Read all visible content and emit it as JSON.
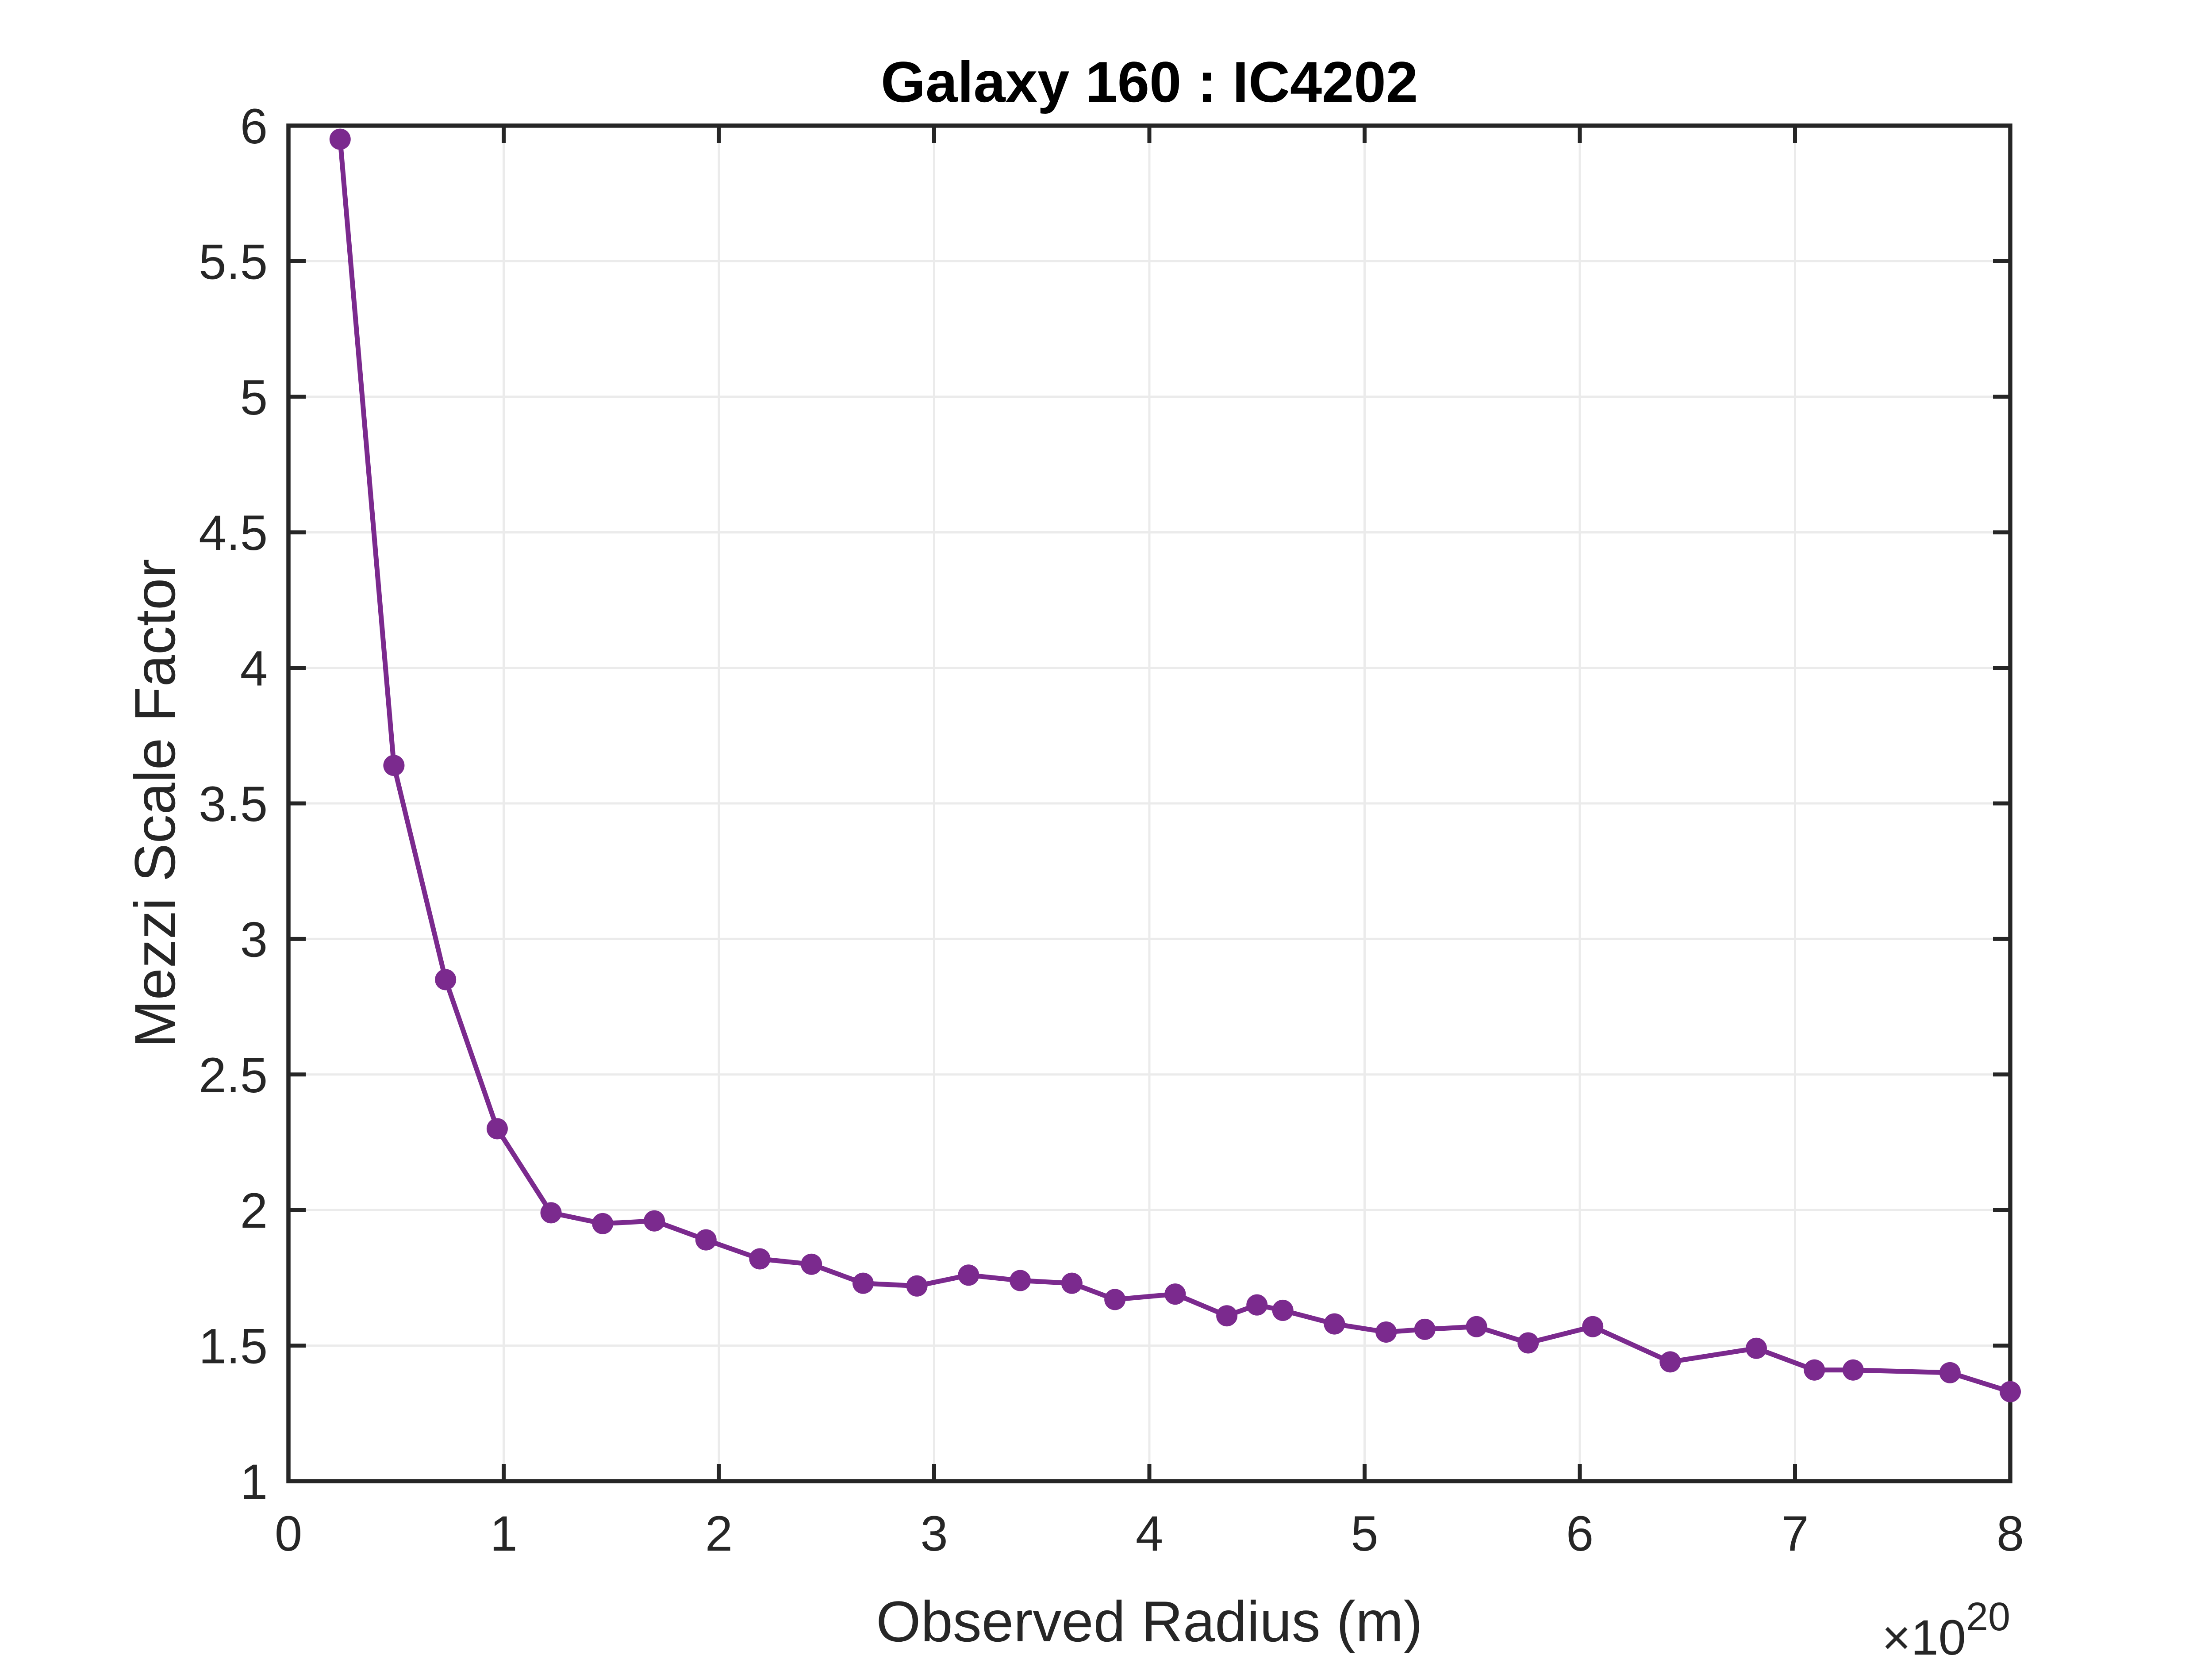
{
  "chart_data": {
    "type": "line",
    "title": "Galaxy 160 : IC4202",
    "xlabel": "Observed Radius (m)",
    "ylabel": "Mezzi Scale Factor",
    "x_multiplier_label": "×10",
    "x_multiplier_exponent": "20",
    "xlim": [
      0,
      8
    ],
    "ylim": [
      1,
      6
    ],
    "xticks": [
      0,
      1,
      2,
      3,
      4,
      5,
      6,
      7,
      8
    ],
    "xtick_labels": [
      "0",
      "1",
      "2",
      "3",
      "4",
      "5",
      "6",
      "7",
      "8"
    ],
    "yticks": [
      1,
      1.5,
      2,
      2.5,
      3,
      3.5,
      4,
      4.5,
      5,
      5.5,
      6
    ],
    "ytick_labels": [
      "1",
      "1.5",
      "2",
      "2.5",
      "3",
      "3.5",
      "4",
      "4.5",
      "5",
      "5.5",
      "6"
    ],
    "grid": true,
    "color": "#7b2a8e",
    "series": [
      {
        "x": [
          0.24,
          0.49,
          0.73,
          0.97,
          1.22,
          1.46,
          1.7,
          1.94,
          2.19,
          2.43,
          2.67,
          2.92,
          3.16,
          3.4,
          3.64,
          3.84,
          4.12,
          4.36,
          4.5,
          4.62,
          4.86,
          5.1,
          5.28,
          5.52,
          5.76,
          6.06,
          6.42,
          6.82,
          7.09,
          7.27,
          7.72,
          8.0
        ],
        "y": [
          5.95,
          3.64,
          2.85,
          2.3,
          1.99,
          1.95,
          1.96,
          1.89,
          1.82,
          1.8,
          1.73,
          1.72,
          1.76,
          1.74,
          1.73,
          1.67,
          1.69,
          1.61,
          1.65,
          1.63,
          1.58,
          1.55,
          1.56,
          1.57,
          1.51,
          1.57,
          1.44,
          1.49,
          1.41,
          1.41,
          1.4,
          1.33
        ]
      }
    ]
  }
}
